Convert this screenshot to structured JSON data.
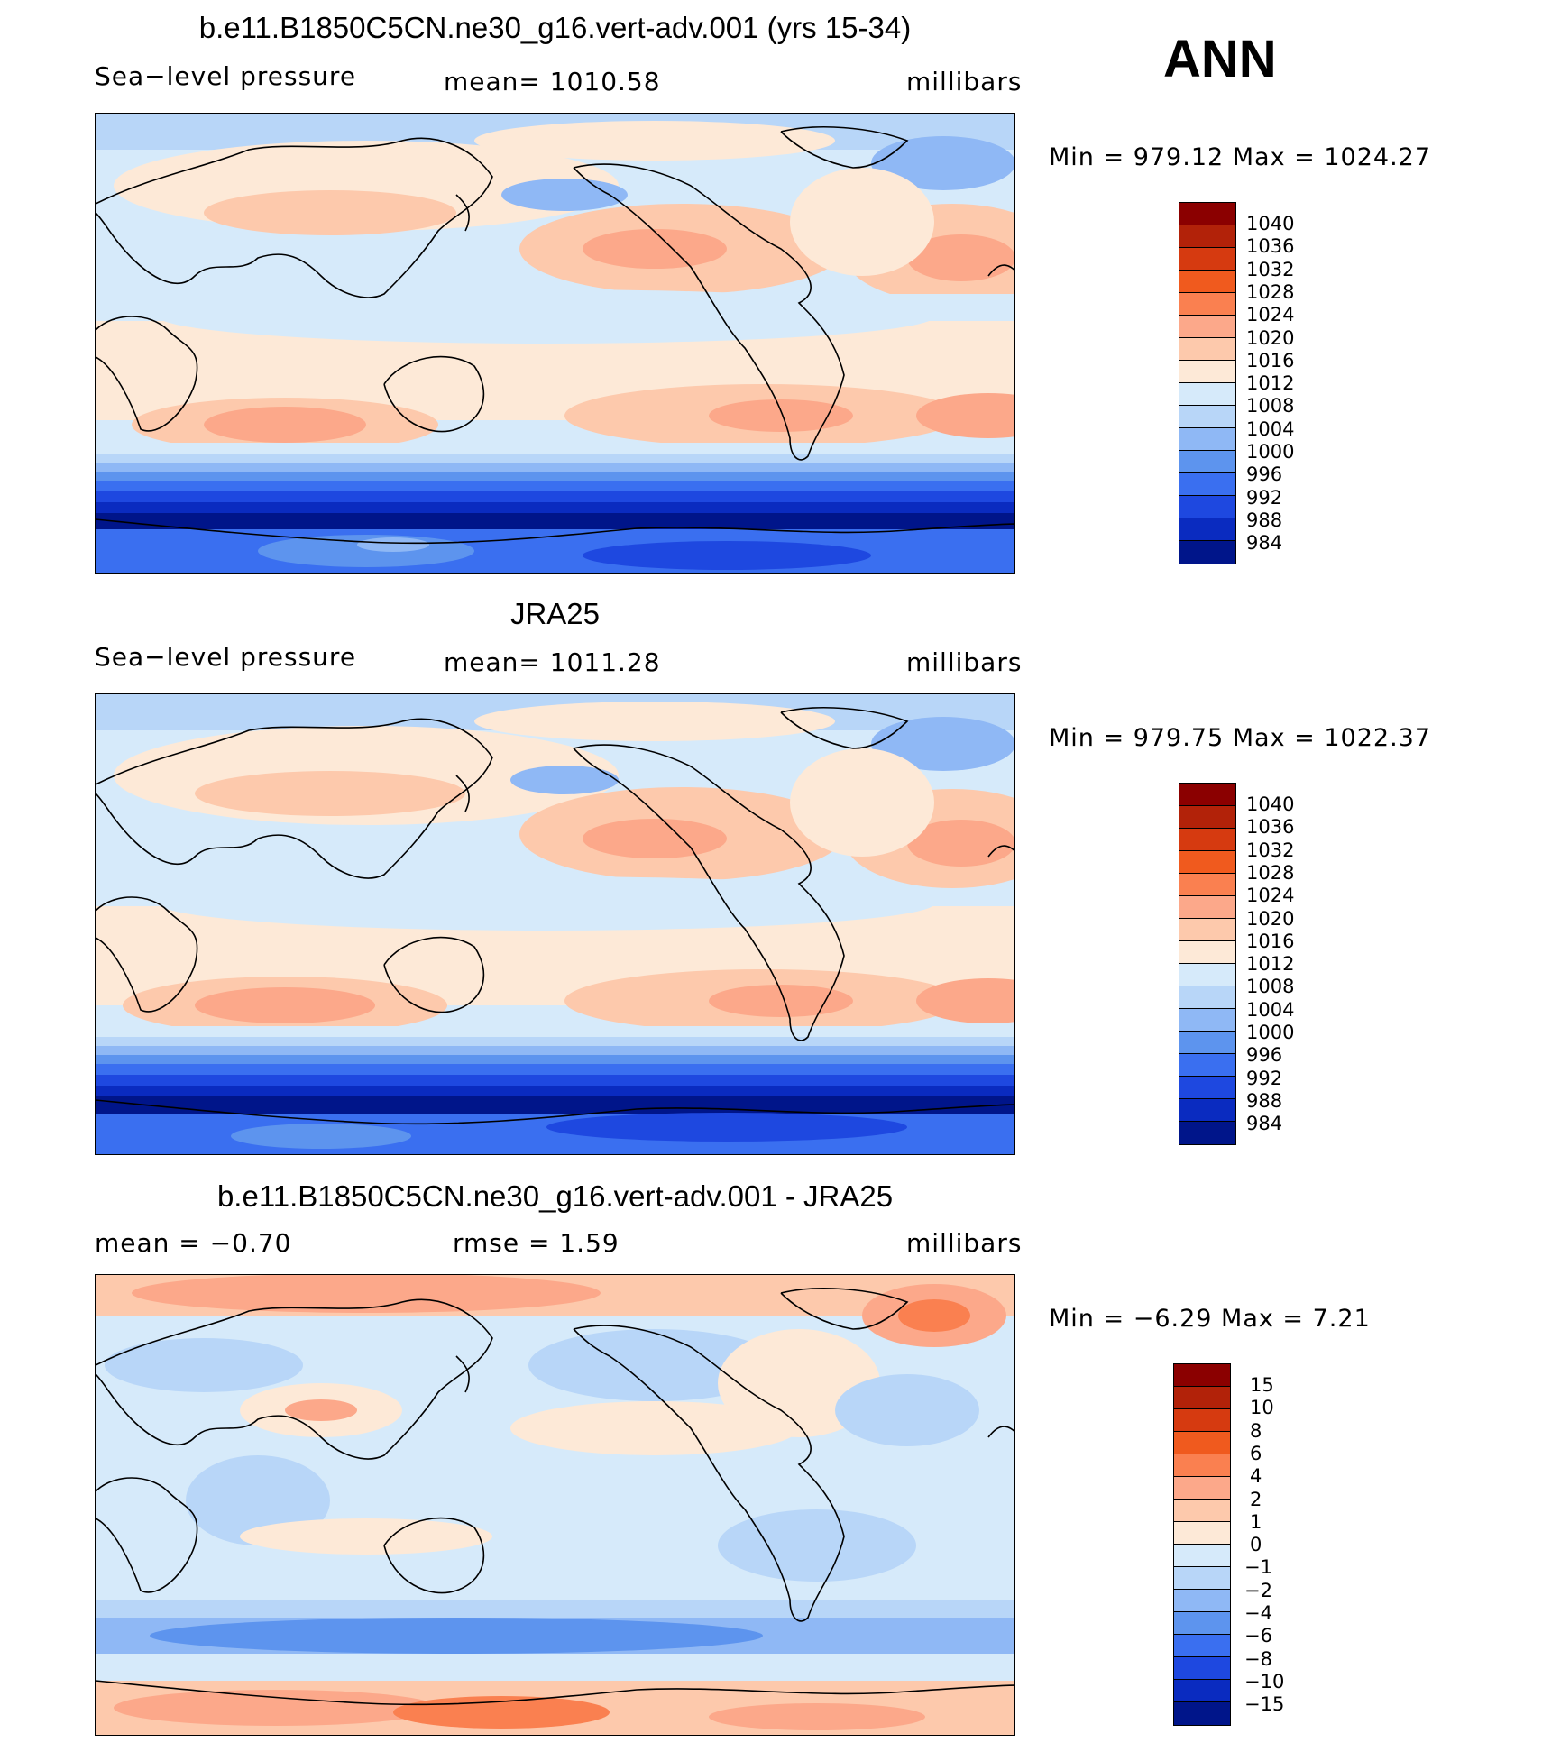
{
  "season": "ANN",
  "panels": [
    {
      "title": "b.e11.B1850C5CN.ne30_g16.vert-adv.001 (yrs 15-34)",
      "left": "Sea−level pressure",
      "center": "mean=  1010.58",
      "right": "millibars",
      "minmax": "Min  =  979.12  Max  =  1024.27",
      "colorbar": {
        "labels": [
          "1040",
          "1036",
          "1032",
          "1028",
          "1024",
          "1020",
          "1016",
          "1012",
          "1008",
          "1004",
          "1000",
          "996",
          "992",
          "988",
          "984"
        ],
        "colors": [
          "#8b0000",
          "#b22209",
          "#d63a10",
          "#f05a1e",
          "#fa8050",
          "#fca88a",
          "#fdc9ac",
          "#fde9d7",
          "#d6eafa",
          "#b8d6f8",
          "#8fb8f5",
          "#5d94ee",
          "#3a6ff0",
          "#1e48e0",
          "#0a2bc0",
          "#00158a"
        ]
      }
    },
    {
      "title": "JRA25",
      "left": "Sea−level pressure",
      "center": "mean=  1011.28",
      "right": "millibars",
      "minmax": "Min  =  979.75  Max  =  1022.37",
      "colorbar": {
        "labels": [
          "1040",
          "1036",
          "1032",
          "1028",
          "1024",
          "1020",
          "1016",
          "1012",
          "1008",
          "1004",
          "1000",
          "996",
          "992",
          "988",
          "984"
        ],
        "colors": [
          "#8b0000",
          "#b22209",
          "#d63a10",
          "#f05a1e",
          "#fa8050",
          "#fca88a",
          "#fdc9ac",
          "#fde9d7",
          "#d6eafa",
          "#b8d6f8",
          "#8fb8f5",
          "#5d94ee",
          "#3a6ff0",
          "#1e48e0",
          "#0a2bc0",
          "#00158a"
        ]
      }
    },
    {
      "title": "b.e11.B1850C5CN.ne30_g16.vert-adv.001 - JRA25",
      "left": "mean  =    −0.70",
      "center": "rmse  =     1.59",
      "right": "millibars",
      "minmax": "Min  =    −6.29  Max  =     7.21",
      "colorbar": {
        "labels": [
          "15",
          "10",
          "8",
          "6",
          "4",
          "2",
          "1",
          "0",
          "−1",
          "−2",
          "−4",
          "−6",
          "−8",
          "−10",
          "−15"
        ],
        "colors": [
          "#8b0000",
          "#b22209",
          "#d63a10",
          "#f05a1e",
          "#fa8050",
          "#fca88a",
          "#fdc9ac",
          "#fde9d7",
          "#d6eafa",
          "#b8d6f8",
          "#8fb8f5",
          "#5d94ee",
          "#3a6ff0",
          "#1e48e0",
          "#0a2bc0",
          "#00158a"
        ]
      }
    }
  ]
}
